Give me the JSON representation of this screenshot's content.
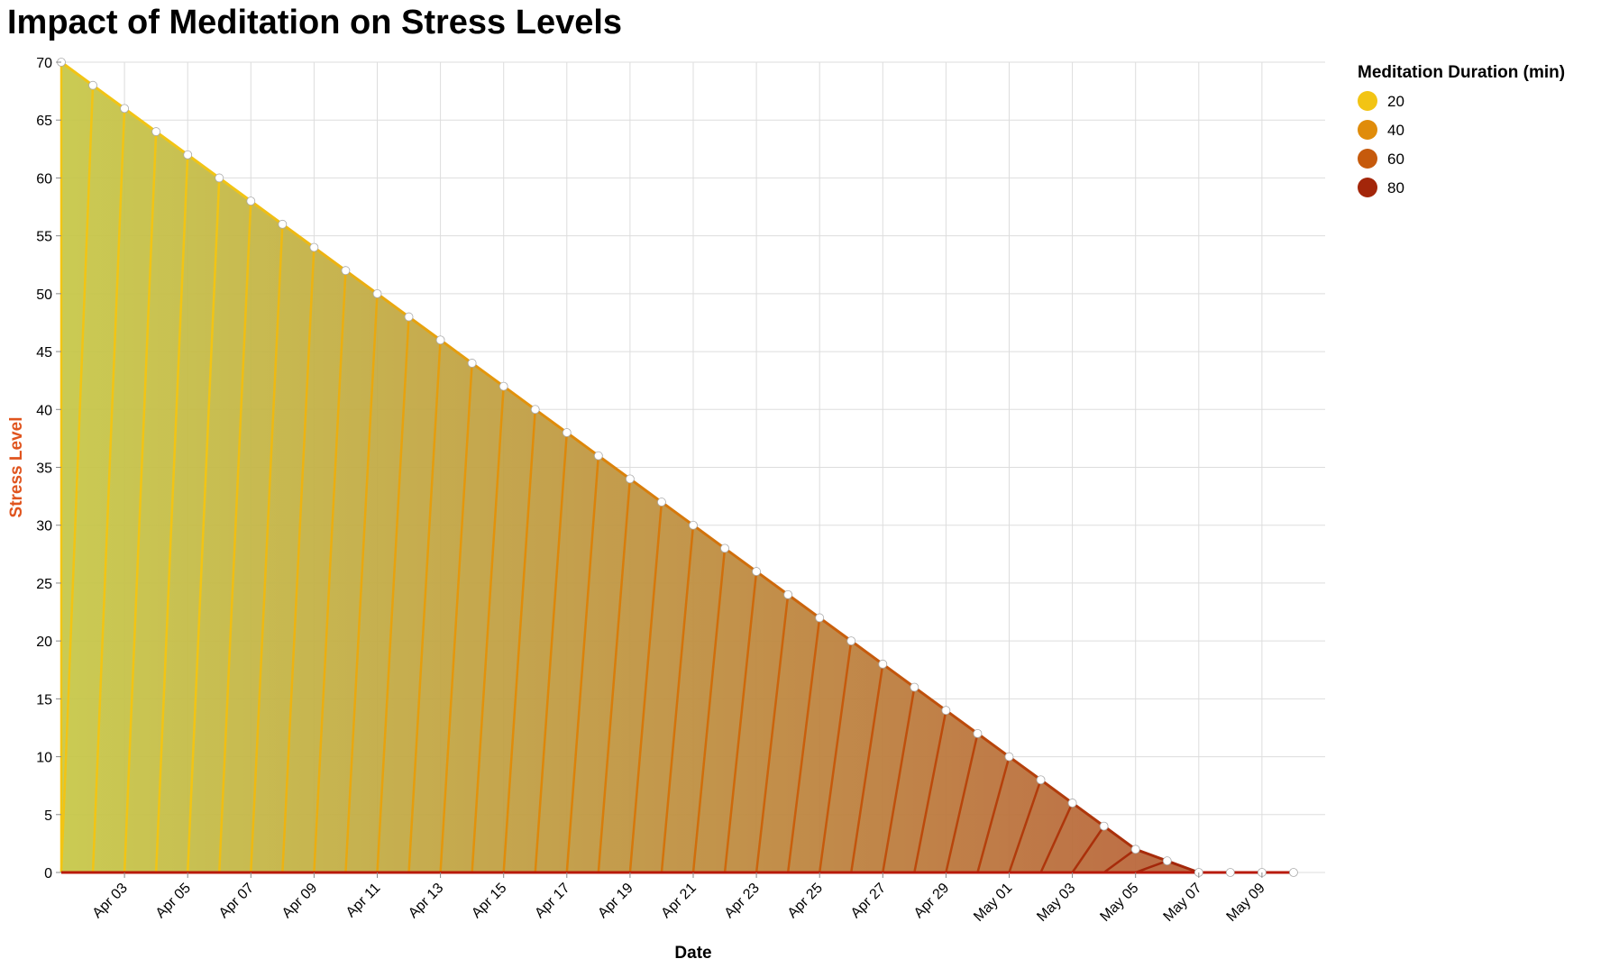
{
  "chart_data": {
    "type": "area",
    "title": "Impact of Meditation on Stress Levels",
    "xlabel": "Date",
    "ylabel": "Stress Level",
    "ylim": [
      0,
      70
    ],
    "y_ticks": [
      0,
      5,
      10,
      15,
      20,
      25,
      30,
      35,
      40,
      45,
      50,
      55,
      60,
      65,
      70
    ],
    "x_range": [
      "2023-04-01",
      "2023-05-11"
    ],
    "x_tick_labels": [
      {
        "date": "2023-04-03",
        "label": "Apr 03"
      },
      {
        "date": "2023-04-05",
        "label": "Apr 05"
      },
      {
        "date": "2023-04-07",
        "label": "Apr 07"
      },
      {
        "date": "2023-04-09",
        "label": "Apr 09"
      },
      {
        "date": "2023-04-11",
        "label": "Apr 11"
      },
      {
        "date": "2023-04-13",
        "label": "Apr 13"
      },
      {
        "date": "2023-04-15",
        "label": "Apr 15"
      },
      {
        "date": "2023-04-17",
        "label": "Apr 17"
      },
      {
        "date": "2023-04-19",
        "label": "Apr 19"
      },
      {
        "date": "2023-04-21",
        "label": "Apr 21"
      },
      {
        "date": "2023-04-23",
        "label": "Apr 23"
      },
      {
        "date": "2023-04-25",
        "label": "Apr 25"
      },
      {
        "date": "2023-04-27",
        "label": "Apr 27"
      },
      {
        "date": "2023-04-29",
        "label": "Apr 29"
      },
      {
        "date": "2023-05-01",
        "label": "May 01"
      },
      {
        "date": "2023-05-03",
        "label": "May 03"
      },
      {
        "date": "2023-05-05",
        "label": "May 05"
      },
      {
        "date": "2023-05-07",
        "label": "May 07"
      },
      {
        "date": "2023-05-09",
        "label": "May 09"
      }
    ],
    "points": [
      {
        "date": "2023-04-01",
        "stress": 70,
        "meditation": 10
      },
      {
        "date": "2023-04-02",
        "stress": 68,
        "meditation": 12
      },
      {
        "date": "2023-04-03",
        "stress": 66,
        "meditation": 14
      },
      {
        "date": "2023-04-04",
        "stress": 64,
        "meditation": 16
      },
      {
        "date": "2023-04-05",
        "stress": 62,
        "meditation": 18
      },
      {
        "date": "2023-04-06",
        "stress": 60,
        "meditation": 20
      },
      {
        "date": "2023-04-07",
        "stress": 58,
        "meditation": 22
      },
      {
        "date": "2023-04-08",
        "stress": 56,
        "meditation": 24
      },
      {
        "date": "2023-04-09",
        "stress": 54,
        "meditation": 26
      },
      {
        "date": "2023-04-10",
        "stress": 52,
        "meditation": 28
      },
      {
        "date": "2023-04-11",
        "stress": 50,
        "meditation": 30
      },
      {
        "date": "2023-04-12",
        "stress": 48,
        "meditation": 32
      },
      {
        "date": "2023-04-13",
        "stress": 46,
        "meditation": 34
      },
      {
        "date": "2023-04-14",
        "stress": 44,
        "meditation": 36
      },
      {
        "date": "2023-04-15",
        "stress": 42,
        "meditation": 38
      },
      {
        "date": "2023-04-16",
        "stress": 40,
        "meditation": 40
      },
      {
        "date": "2023-04-17",
        "stress": 38,
        "meditation": 42
      },
      {
        "date": "2023-04-18",
        "stress": 36,
        "meditation": 44
      },
      {
        "date": "2023-04-19",
        "stress": 34,
        "meditation": 46
      },
      {
        "date": "2023-04-20",
        "stress": 32,
        "meditation": 48
      },
      {
        "date": "2023-04-21",
        "stress": 30,
        "meditation": 50
      },
      {
        "date": "2023-04-22",
        "stress": 28,
        "meditation": 52
      },
      {
        "date": "2023-04-23",
        "stress": 26,
        "meditation": 54
      },
      {
        "date": "2023-04-24",
        "stress": 24,
        "meditation": 56
      },
      {
        "date": "2023-04-25",
        "stress": 22,
        "meditation": 58
      },
      {
        "date": "2023-04-26",
        "stress": 20,
        "meditation": 60
      },
      {
        "date": "2023-04-27",
        "stress": 18,
        "meditation": 62
      },
      {
        "date": "2023-04-28",
        "stress": 16,
        "meditation": 64
      },
      {
        "date": "2023-04-29",
        "stress": 14,
        "meditation": 66
      },
      {
        "date": "2023-04-30",
        "stress": 12,
        "meditation": 68
      },
      {
        "date": "2023-05-01",
        "stress": 10,
        "meditation": 70
      },
      {
        "date": "2023-05-02",
        "stress": 8,
        "meditation": 72
      },
      {
        "date": "2023-05-03",
        "stress": 6,
        "meditation": 74
      },
      {
        "date": "2023-05-04",
        "stress": 4,
        "meditation": 76
      },
      {
        "date": "2023-05-05",
        "stress": 2,
        "meditation": 78
      },
      {
        "date": "2023-05-06",
        "stress": 1,
        "meditation": 80
      },
      {
        "date": "2023-05-07",
        "stress": 0,
        "meditation": 82
      },
      {
        "date": "2023-05-08",
        "stress": 0,
        "meditation": 84
      },
      {
        "date": "2023-05-09",
        "stress": 0,
        "meditation": 86
      },
      {
        "date": "2023-05-10",
        "stress": 0,
        "meditation": 88
      }
    ],
    "legend": {
      "title": "Meditation Duration (min)",
      "placement": "top-right",
      "entries": [
        {
          "value": 20,
          "label": "20",
          "color": "#f2c414"
        },
        {
          "value": 40,
          "label": "40",
          "color": "#e08c0a"
        },
        {
          "value": 60,
          "label": "60",
          "color": "#c65a0c"
        },
        {
          "value": 80,
          "label": "80",
          "color": "#a3260a"
        }
      ]
    },
    "colors": {
      "ylabel": "#e0541e",
      "area_start": "#c7c84a",
      "area_end": "#b85a3a",
      "marker_fill": "#ffffff",
      "baseline": "#b81a0a",
      "grid": "#dddddd"
    },
    "grid": true
  }
}
